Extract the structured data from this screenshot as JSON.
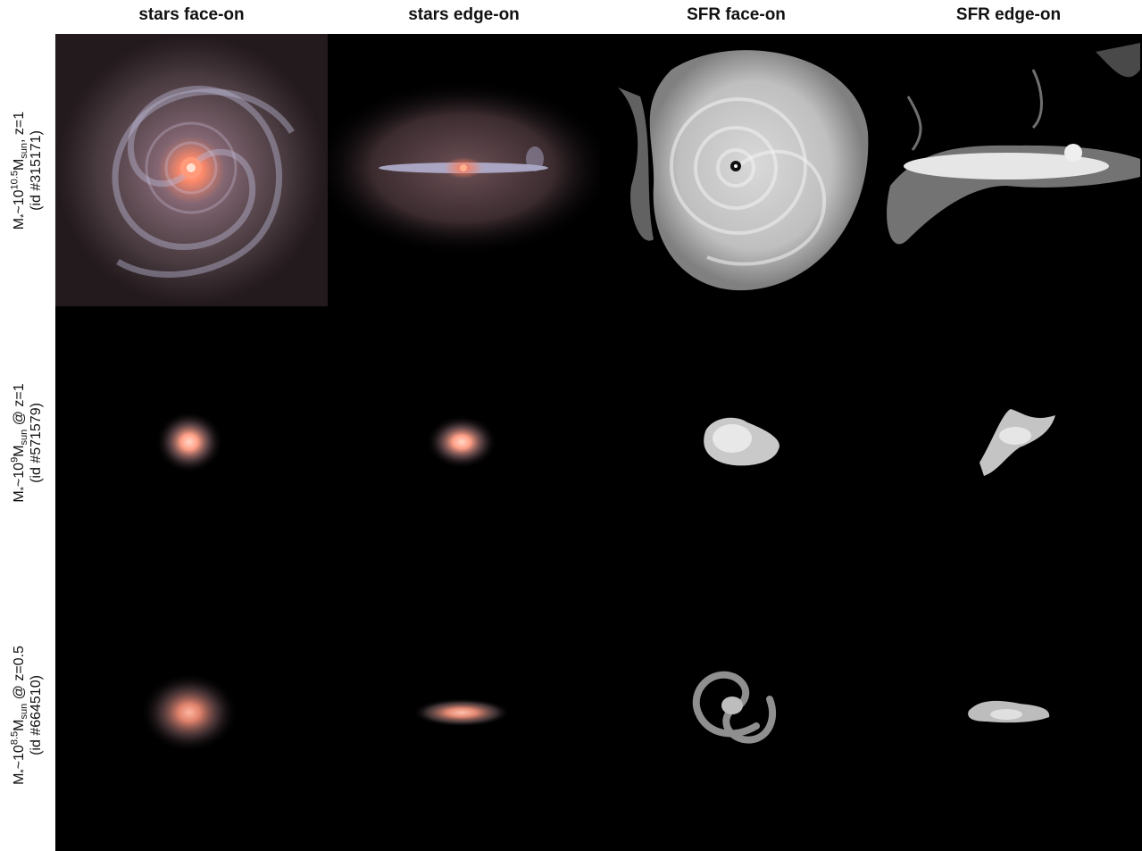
{
  "columns": [
    {
      "label": "stars face-on"
    },
    {
      "label": "stars edge-on"
    },
    {
      "label": "SFR face-on"
    },
    {
      "label": "SFR edge-on"
    }
  ],
  "rows": [
    {
      "label_line1": {
        "m": "M",
        "m_sub": "*",
        "sim": "~10",
        "exp": "10.5",
        "msun": "M",
        "msun_sub": "sun",
        "tail": ", z=1"
      },
      "label_line2": "(id #315171)"
    },
    {
      "label_line1": {
        "m": "M",
        "m_sub": "*",
        "sim": "~10",
        "exp": "9",
        "msun": "M",
        "msun_sub": "sun",
        "tail": " @ z=1"
      },
      "label_line2": "(id #571579)"
    },
    {
      "label_line1": {
        "m": "M",
        "m_sub": "*",
        "sim": "~10",
        "exp": "8.5",
        "msun": "M",
        "msun_sub": "sun",
        "tail": " @ z=0.5"
      },
      "label_line2": "(id #664510)"
    }
  ],
  "colors": {
    "background": "#000000",
    "stellar_core": "#ff8a6a",
    "stellar_disk": "#b7b6d0",
    "sfr_gas": "#e6e6e6"
  }
}
